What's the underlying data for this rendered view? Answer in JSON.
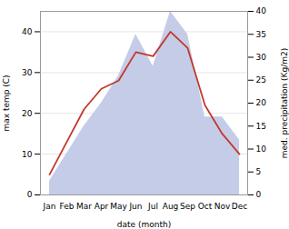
{
  "chart_data": {
    "type": "line",
    "categories": [
      "Jan",
      "Feb",
      "Mar",
      "Apr",
      "May",
      "Jun",
      "Jul",
      "Aug",
      "Sep",
      "Oct",
      "Nov",
      "Dec"
    ],
    "xlabel": "date (month)",
    "ylabel": "max temp (C)",
    "y2label": "med. precipitation (Kg/m2)",
    "series": [
      {
        "name": "med. precipitation (Kg/m2)",
        "type": "area",
        "axis": "y2",
        "color": "#c5cce8",
        "values": [
          3,
          9,
          15,
          20,
          26,
          35,
          28,
          40,
          35,
          17,
          17,
          12
        ]
      },
      {
        "name": "max temp (C)",
        "type": "line",
        "color": "#c0392b",
        "values": [
          5,
          13,
          21,
          26,
          28,
          35,
          34,
          40,
          36,
          22,
          15,
          10
        ]
      }
    ],
    "ylim": [
      0,
      45
    ],
    "yticks": [
      0,
      10,
      20,
      30,
      40
    ],
    "y2lim": [
      0,
      40
    ],
    "y2ticks": [
      0,
      5,
      10,
      15,
      20,
      25,
      30,
      35,
      40
    ],
    "grid": true
  }
}
